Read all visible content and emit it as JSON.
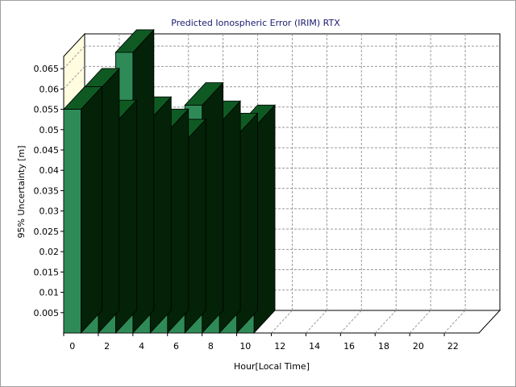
{
  "chart_data": {
    "type": "bar",
    "title": "Predicted Ionospheric Error (IRIM) RTX",
    "xlabel": "Hour[Local Time]",
    "ylabel": "95% Uncertainty [m]",
    "x": [
      0,
      1,
      2,
      3,
      4,
      5,
      6,
      7,
      8,
      9,
      10
    ],
    "values": [
      0.055,
      0.0595,
      0.0517,
      0.069,
      0.0525,
      0.0495,
      0.047,
      0.056,
      0.0515,
      0.0485,
      0.0505
    ],
    "xlim": [
      0,
      24
    ],
    "ylim": [
      0,
      0.068
    ],
    "x_ticks": [
      "0",
      "2",
      "4",
      "6",
      "8",
      "10",
      "12",
      "14",
      "16",
      "18",
      "20",
      "22"
    ],
    "y_ticks": [
      "0.005",
      "0.01",
      "0.015",
      "0.02",
      "0.025",
      "0.03",
      "0.035",
      "0.04",
      "0.045",
      "0.05",
      "0.055",
      "0.06",
      "0.065"
    ],
    "grid": true,
    "style": "3d",
    "colors": {
      "bar_front": "#2e8b57",
      "bar_top": "#0f5a23",
      "bar_side": "#032208",
      "wall": "#fffce0",
      "grid": "#9a9a9a",
      "title": "#1a1a6e"
    }
  }
}
